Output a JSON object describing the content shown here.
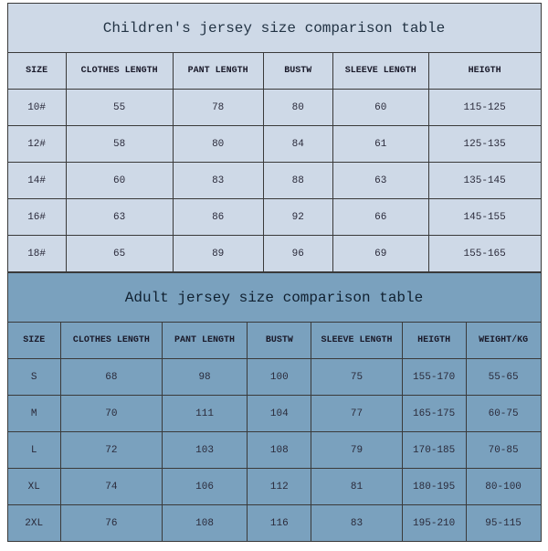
{
  "children_table": {
    "type": "table",
    "title": "Children's jersey size comparison table",
    "background_color": "#ced9e7",
    "border_color": "#3a3a3a",
    "title_fontsize": 16,
    "header_fontsize": 10,
    "cell_fontsize": 11,
    "columns": [
      "SIZE",
      "CLOTHES LENGTH",
      "PANT LENGTH",
      "BUSTW",
      "SLEEVE LENGTH",
      "HEIGTH"
    ],
    "col_widths_pct": [
      11,
      20,
      17,
      13,
      18,
      21
    ],
    "rows": [
      [
        "10#",
        "55",
        "78",
        "80",
        "60",
        "115-125"
      ],
      [
        "12#",
        "58",
        "80",
        "84",
        "61",
        "125-135"
      ],
      [
        "14#",
        "60",
        "83",
        "88",
        "63",
        "135-145"
      ],
      [
        "16#",
        "63",
        "86",
        "92",
        "66",
        "145-155"
      ],
      [
        "18#",
        "65",
        "89",
        "96",
        "69",
        "155-165"
      ]
    ]
  },
  "adult_table": {
    "type": "table",
    "title": "Adult jersey size comparison table",
    "background_color": "#7aa1be",
    "border_color": "#3a3a3a",
    "title_fontsize": 16,
    "header_fontsize": 10,
    "cell_fontsize": 11,
    "columns": [
      "SIZE",
      "CLOTHES LENGTH",
      "PANT LENGTH",
      "BUSTW",
      "SLEEVE LENGTH",
      "HEIGTH",
      "WEIGHT/KG"
    ],
    "col_widths_pct": [
      10,
      19,
      16,
      12,
      17,
      12,
      14
    ],
    "rows": [
      [
        "S",
        "68",
        "98",
        "100",
        "75",
        "155-170",
        "55-65"
      ],
      [
        "M",
        "70",
        "111",
        "104",
        "77",
        "165-175",
        "60-75"
      ],
      [
        "L",
        "72",
        "103",
        "108",
        "79",
        "170-185",
        "70-85"
      ],
      [
        "XL",
        "74",
        "106",
        "112",
        "81",
        "180-195",
        "80-100"
      ],
      [
        "2XL",
        "76",
        "108",
        "116",
        "83",
        "195-210",
        "95-115"
      ]
    ]
  }
}
